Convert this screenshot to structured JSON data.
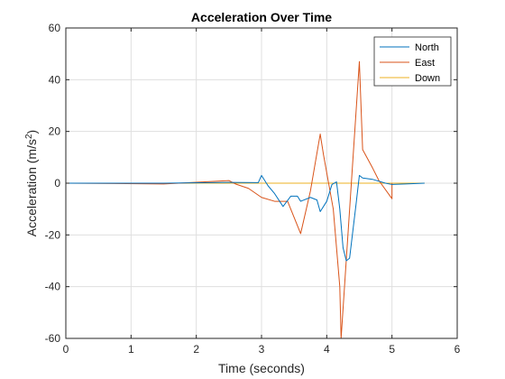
{
  "chart_data": {
    "type": "line",
    "title": "Acceleration Over Time",
    "xlabel": "Time (seconds)",
    "ylabel": "Acceleration (m/s²)",
    "ylabel_parts": {
      "main": "Acceleration (m/s",
      "superscript": "2",
      "close": ")"
    },
    "xlim": [
      0,
      6
    ],
    "ylim": [
      -60,
      60
    ],
    "xticks": [
      0,
      1,
      2,
      3,
      4,
      5,
      6
    ],
    "xtick_labels": [
      "0",
      "1",
      "2",
      "3",
      "4",
      "5",
      "6"
    ],
    "yticks": [
      -60,
      -40,
      -20,
      0,
      20,
      40,
      60
    ],
    "ytick_labels": [
      "-60",
      "-40",
      "-20",
      "0",
      "20",
      "40",
      "60"
    ],
    "grid": true,
    "legend_position": "top-right",
    "series": [
      {
        "name": "North",
        "color": "#0072BD",
        "points": [
          [
            0,
            0
          ],
          [
            1.5,
            0
          ],
          [
            2.5,
            0.3
          ],
          [
            2.95,
            0.2
          ],
          [
            3.0,
            3.0
          ],
          [
            3.1,
            -1.0
          ],
          [
            3.2,
            -4.0
          ],
          [
            3.33,
            -9.0
          ],
          [
            3.45,
            -5.0
          ],
          [
            3.55,
            -5.0
          ],
          [
            3.6,
            -7.0
          ],
          [
            3.75,
            -5.5
          ],
          [
            3.85,
            -6.5
          ],
          [
            3.9,
            -11.0
          ],
          [
            4.0,
            -7.0
          ],
          [
            4.08,
            -0.5
          ],
          [
            4.15,
            0.5
          ],
          [
            4.2,
            -10.0
          ],
          [
            4.25,
            -25.0
          ],
          [
            4.3,
            -30.0
          ],
          [
            4.35,
            -29.0
          ],
          [
            4.45,
            -8.0
          ],
          [
            4.5,
            3.0
          ],
          [
            4.55,
            2.0
          ],
          [
            4.7,
            1.5
          ],
          [
            4.9,
            0.0
          ],
          [
            5.0,
            -0.5
          ],
          [
            5.2,
            -0.3
          ],
          [
            5.5,
            0.0
          ]
        ]
      },
      {
        "name": "East",
        "color": "#D95319",
        "points": [
          [
            0,
            0
          ],
          [
            1.5,
            -0.3
          ],
          [
            2.5,
            1.0
          ],
          [
            2.6,
            -0.3
          ],
          [
            2.8,
            -2.0
          ],
          [
            3.0,
            -5.5
          ],
          [
            3.2,
            -7.0
          ],
          [
            3.4,
            -7.0
          ],
          [
            3.6,
            -19.5
          ],
          [
            3.75,
            -3.0
          ],
          [
            3.9,
            19.0
          ],
          [
            3.95,
            11.0
          ],
          [
            4.1,
            -10.0
          ],
          [
            4.2,
            -40.0
          ],
          [
            4.22,
            -60.0
          ],
          [
            4.5,
            47.0
          ],
          [
            4.55,
            13.0
          ],
          [
            4.7,
            6.0
          ],
          [
            4.8,
            1.0
          ],
          [
            5.0,
            -6.0
          ],
          [
            5.0,
            0.0
          ]
        ]
      },
      {
        "name": "Down",
        "color": "#EDB120",
        "points": [
          [
            0,
            0
          ],
          [
            5.5,
            0
          ]
        ]
      }
    ]
  }
}
